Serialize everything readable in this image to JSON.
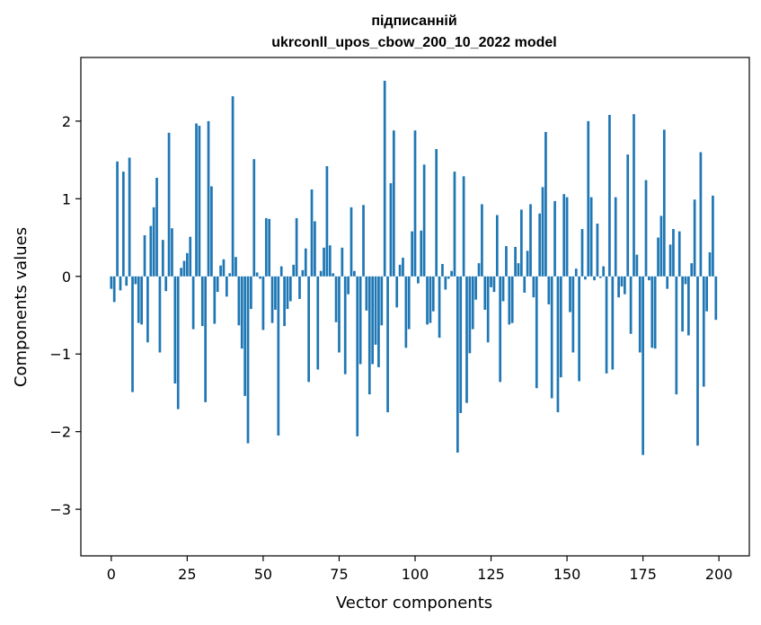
{
  "chart_data": {
    "type": "bar",
    "title_line1": "підписанній",
    "title_line2": "ukrconll_upos_cbow_200_10_2022 model",
    "xlabel": "Vector components",
    "ylabel": "Components values",
    "xlim": [
      -10,
      210
    ],
    "ylim": [
      -3.6,
      2.82
    ],
    "xticks": [
      0,
      25,
      50,
      75,
      100,
      125,
      150,
      175,
      200
    ],
    "xtick_labels": [
      "0",
      "25",
      "50",
      "75",
      "100",
      "125",
      "150",
      "175",
      "200"
    ],
    "yticks": [
      -3,
      -2,
      -1,
      0,
      1,
      2
    ],
    "ytick_labels": [
      "−3",
      "−2",
      "−1",
      "0",
      "1",
      "2"
    ],
    "bar_color": "#1f77b4",
    "x": [
      0,
      1,
      2,
      3,
      4,
      5,
      6,
      7,
      8,
      9,
      10,
      11,
      12,
      13,
      14,
      15,
      16,
      17,
      18,
      19,
      20,
      21,
      22,
      23,
      24,
      25,
      26,
      27,
      28,
      29,
      30,
      31,
      32,
      33,
      34,
      35,
      36,
      37,
      38,
      39,
      40,
      41,
      42,
      43,
      44,
      45,
      46,
      47,
      48,
      49,
      50,
      51,
      52,
      53,
      54,
      55,
      56,
      57,
      58,
      59,
      60,
      61,
      62,
      63,
      64,
      65,
      66,
      67,
      68,
      69,
      70,
      71,
      72,
      73,
      74,
      75,
      76,
      77,
      78,
      79,
      80,
      81,
      82,
      83,
      84,
      85,
      86,
      87,
      88,
      89,
      90,
      91,
      92,
      93,
      94,
      95,
      96,
      97,
      98,
      99,
      100,
      101,
      102,
      103,
      104,
      105,
      106,
      107,
      108,
      109,
      110,
      111,
      112,
      113,
      114,
      115,
      116,
      117,
      118,
      119,
      120,
      121,
      122,
      123,
      124,
      125,
      126,
      127,
      128,
      129,
      130,
      131,
      132,
      133,
      134,
      135,
      136,
      137,
      138,
      139,
      140,
      141,
      142,
      143,
      144,
      145,
      146,
      147,
      148,
      149,
      150,
      151,
      152,
      153,
      154,
      155,
      156,
      157,
      158,
      159,
      160,
      161,
      162,
      163,
      164,
      165,
      166,
      167,
      168,
      169,
      170,
      171,
      172,
      173,
      174,
      175,
      176,
      177,
      178,
      179,
      180,
      181,
      182,
      183,
      184,
      185,
      186,
      187,
      188,
      189,
      190,
      191,
      192,
      193,
      194,
      195,
      196,
      197,
      198,
      199
    ],
    "values": [
      -0.16,
      -0.33,
      1.48,
      -0.18,
      1.35,
      -0.12,
      1.53,
      -1.49,
      -0.1,
      -0.6,
      -0.62,
      0.53,
      -0.85,
      0.65,
      0.89,
      1.27,
      -0.98,
      0.47,
      -0.19,
      1.85,
      0.62,
      -1.38,
      -1.71,
      0.11,
      0.2,
      0.3,
      0.51,
      -0.68,
      1.97,
      1.94,
      -0.64,
      -1.62,
      2.0,
      1.16,
      -0.61,
      -0.2,
      0.14,
      0.22,
      -0.26,
      0.04,
      2.32,
      0.25,
      -0.63,
      -0.93,
      -1.54,
      -2.15,
      -0.42,
      1.51,
      0.05,
      -0.03,
      -0.69,
      0.75,
      0.74,
      -0.6,
      -0.43,
      -2.05,
      0.13,
      -0.64,
      -0.42,
      -0.32,
      0.15,
      0.75,
      -0.29,
      0.08,
      0.36,
      -1.36,
      1.12,
      0.71,
      -1.2,
      0.07,
      0.37,
      1.42,
      0.4,
      0.04,
      -0.59,
      -0.98,
      0.37,
      -1.26,
      -0.23,
      0.89,
      0.07,
      -2.06,
      -1.13,
      0.92,
      -0.44,
      -1.52,
      -1.13,
      -0.88,
      -1.17,
      -0.63,
      2.52,
      -1.75,
      1.2,
      1.88,
      -0.4,
      0.15,
      0.24,
      -0.92,
      -0.68,
      0.58,
      1.88,
      -0.09,
      0.59,
      1.44,
      -0.62,
      -0.6,
      -0.45,
      1.64,
      -0.79,
      0.16,
      -0.17,
      -0.03,
      0.07,
      1.35,
      -2.27,
      -1.76,
      1.29,
      -1.63,
      -0.99,
      -0.68,
      -0.3,
      0.17,
      0.93,
      -0.43,
      -0.85,
      -0.14,
      -0.2,
      0.79,
      -1.36,
      -0.32,
      0.39,
      -0.62,
      -0.6,
      0.38,
      0.17,
      0.86,
      -0.21,
      0.33,
      0.93,
      -0.27,
      -1.44,
      0.81,
      1.15,
      1.86,
      -0.36,
      -1.57,
      0.97,
      -1.75,
      -1.3,
      1.06,
      1.02,
      -0.46,
      -0.98,
      0.1,
      -1.35,
      0.61,
      -0.04,
      2.0,
      1.02,
      -0.05,
      0.68,
      -0.02,
      0.13,
      -1.25,
      2.08,
      -1.2,
      1.02,
      -0.27,
      -0.13,
      -0.23,
      1.57,
      -0.74,
      2.09,
      0.28,
      -0.98,
      -2.3,
      1.24,
      -0.05,
      -0.92,
      -0.93,
      0.5,
      0.78,
      1.89,
      -0.16,
      0.41,
      0.61,
      -1.52,
      0.58,
      -0.71,
      -0.1,
      -0.76,
      0.17,
      0.99,
      -2.18,
      1.6,
      -1.42,
      -0.45,
      0.31,
      1.04,
      -0.56
    ]
  }
}
